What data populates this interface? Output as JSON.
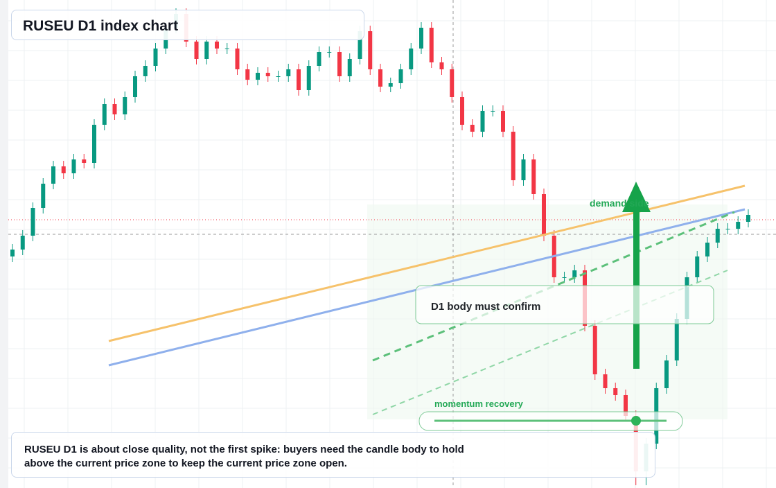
{
  "chart_data": {
    "type": "candlestick",
    "title": "RUSEU D1 index chart",
    "ylim": [
      0,
      704
    ],
    "series": [
      {
        "up_color": "#089981",
        "down_color": "#f23645",
        "open": [
          334,
          344,
          364,
          404,
          439,
          464,
          454,
          474,
          469,
          524,
          554,
          539,
          564,
          594,
          609,
          634,
          664,
          684,
          644,
          619,
          644,
          634,
          634,
          604,
          589,
          599,
          594,
          594,
          604,
          574,
          609,
          629,
          629,
          594,
          619,
          659,
          604,
          579,
          584,
          604,
          634,
          664,
          614,
          604,
          564,
          524,
          514,
          544,
          544,
          514,
          444,
          474,
          424,
          364,
          304,
          304,
          314,
          234,
          164,
          144,
          134,
          104,
          24,
          64,
          144,
          184,
          244,
          304,
          334,
          354,
          374,
          374,
          384
        ],
        "high": [
          352,
          372,
          412,
          447,
          472,
          472,
          482,
          482,
          532,
          562,
          562,
          572,
          602,
          617,
          642,
          672,
          692,
          692,
          652,
          652,
          652,
          642,
          642,
          612,
          607,
          607,
          602,
          612,
          612,
          617,
          637,
          637,
          637,
          627,
          667,
          667,
          612,
          592,
          612,
          642,
          672,
          672,
          622,
          612,
          572,
          532,
          552,
          552,
          552,
          522,
          482,
          482,
          432,
          372,
          312,
          322,
          322,
          242,
          172,
          152,
          142,
          112,
          72,
          152,
          192,
          252,
          312,
          342,
          362,
          382,
          382,
          392,
          402
        ],
        "low": [
          326,
          336,
          356,
          396,
          431,
          446,
          446,
          461,
          461,
          516,
          531,
          531,
          556,
          586,
          601,
          626,
          656,
          636,
          611,
          611,
          626,
          626,
          596,
          581,
          581,
          586,
          586,
          586,
          566,
          566,
          601,
          621,
          586,
          586,
          611,
          596,
          571,
          571,
          576,
          596,
          626,
          606,
          596,
          556,
          516,
          506,
          506,
          536,
          506,
          436,
          436,
          416,
          356,
          296,
          296,
          296,
          226,
          156,
          136,
          126,
          96,
          4,
          4,
          56,
          136,
          176,
          236,
          296,
          326,
          346,
          366,
          366,
          376
        ],
        "close": [
          344,
          364,
          404,
          439,
          464,
          454,
          474,
          469,
          524,
          554,
          539,
          564,
          594,
          609,
          634,
          664,
          684,
          644,
          619,
          644,
          634,
          634,
          604,
          589,
          599,
          594,
          594,
          604,
          574,
          609,
          629,
          629,
          594,
          619,
          659,
          604,
          579,
          584,
          604,
          634,
          664,
          614,
          604,
          564,
          524,
          514,
          544,
          544,
          514,
          444,
          474,
          424,
          364,
          304,
          304,
          314,
          234,
          164,
          144,
          134,
          104,
          24,
          64,
          144,
          184,
          244,
          304,
          334,
          354,
          374,
          374,
          384,
          394
        ]
      }
    ],
    "annotations": {
      "demand": "demand side",
      "confirm": "D1 body must confirm",
      "momentum": "momentum recovery",
      "note": [
        "RUSEU D1 is about close quality, not the first spike: buyers need the candle body to hold",
        "above the current price zone to keep the current price zone open."
      ]
    }
  }
}
